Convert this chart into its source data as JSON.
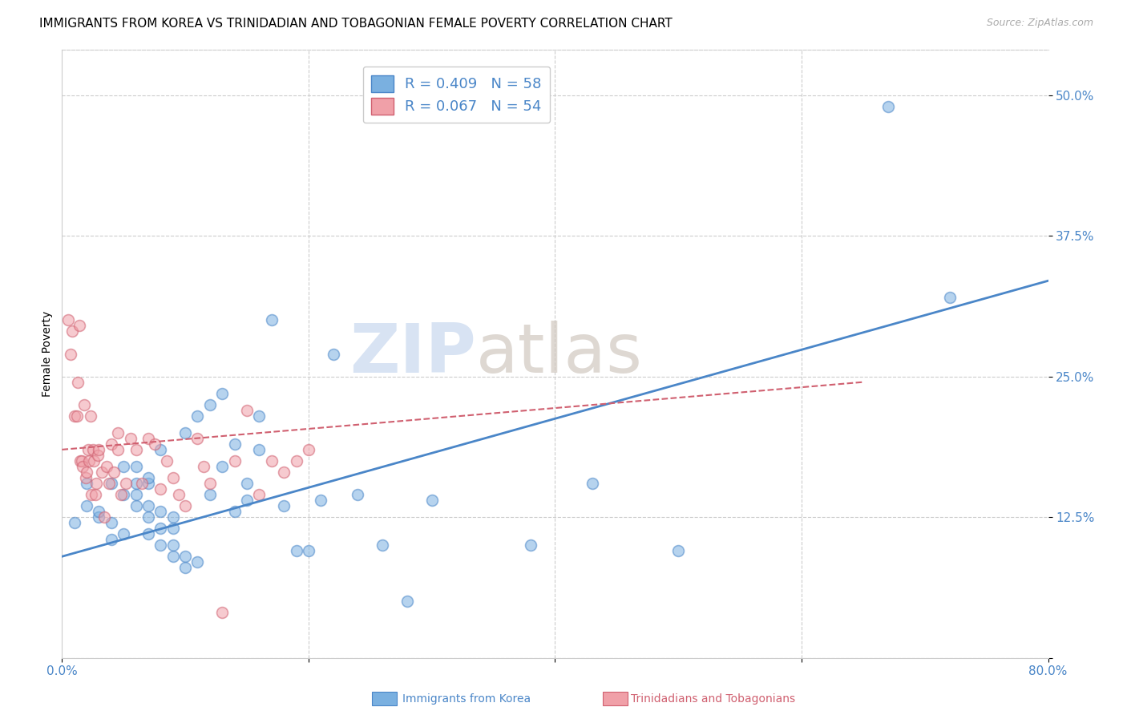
{
  "title": "IMMIGRANTS FROM KOREA VS TRINIDADIAN AND TOBAGONIAN FEMALE POVERTY CORRELATION CHART",
  "source": "Source: ZipAtlas.com",
  "ylabel": "Female Poverty",
  "yticks": [
    0.0,
    0.125,
    0.25,
    0.375,
    0.5
  ],
  "ytick_labels": [
    "",
    "12.5%",
    "25.0%",
    "37.5%",
    "50.0%"
  ],
  "xlim": [
    0.0,
    0.8
  ],
  "ylim": [
    0.0,
    0.54
  ],
  "watermark_left": "ZIP",
  "watermark_right": "atlas",
  "legend_r1": "R = 0.409",
  "legend_n1": "N = 58",
  "legend_r2": "R = 0.067",
  "legend_n2": "N = 54",
  "korea_scatter_x": [
    0.01,
    0.02,
    0.02,
    0.03,
    0.03,
    0.04,
    0.04,
    0.04,
    0.05,
    0.05,
    0.05,
    0.06,
    0.06,
    0.06,
    0.06,
    0.07,
    0.07,
    0.07,
    0.07,
    0.07,
    0.08,
    0.08,
    0.08,
    0.08,
    0.09,
    0.09,
    0.09,
    0.09,
    0.1,
    0.1,
    0.1,
    0.11,
    0.11,
    0.12,
    0.12,
    0.13,
    0.13,
    0.14,
    0.14,
    0.15,
    0.15,
    0.16,
    0.16,
    0.17,
    0.18,
    0.19,
    0.2,
    0.21,
    0.22,
    0.24,
    0.26,
    0.28,
    0.3,
    0.38,
    0.43,
    0.5,
    0.67,
    0.72
  ],
  "korea_scatter_y": [
    0.12,
    0.155,
    0.135,
    0.125,
    0.13,
    0.105,
    0.12,
    0.155,
    0.11,
    0.145,
    0.17,
    0.135,
    0.145,
    0.155,
    0.17,
    0.11,
    0.125,
    0.135,
    0.155,
    0.16,
    0.1,
    0.115,
    0.13,
    0.185,
    0.09,
    0.1,
    0.115,
    0.125,
    0.08,
    0.09,
    0.2,
    0.085,
    0.215,
    0.145,
    0.225,
    0.17,
    0.235,
    0.13,
    0.19,
    0.14,
    0.155,
    0.185,
    0.215,
    0.3,
    0.135,
    0.095,
    0.095,
    0.14,
    0.27,
    0.145,
    0.1,
    0.05,
    0.14,
    0.1,
    0.155,
    0.095,
    0.49,
    0.32
  ],
  "tt_scatter_x": [
    0.005,
    0.007,
    0.008,
    0.01,
    0.012,
    0.013,
    0.014,
    0.015,
    0.016,
    0.017,
    0.018,
    0.019,
    0.02,
    0.021,
    0.022,
    0.023,
    0.024,
    0.025,
    0.026,
    0.027,
    0.028,
    0.029,
    0.03,
    0.032,
    0.034,
    0.036,
    0.038,
    0.04,
    0.042,
    0.045,
    0.048,
    0.052,
    0.056,
    0.06,
    0.065,
    0.07,
    0.075,
    0.08,
    0.085,
    0.09,
    0.095,
    0.1,
    0.11,
    0.115,
    0.12,
    0.13,
    0.14,
    0.15,
    0.16,
    0.17,
    0.18,
    0.19,
    0.2,
    0.045
  ],
  "tt_scatter_y": [
    0.3,
    0.27,
    0.29,
    0.215,
    0.215,
    0.245,
    0.295,
    0.175,
    0.175,
    0.17,
    0.225,
    0.16,
    0.165,
    0.185,
    0.175,
    0.215,
    0.145,
    0.185,
    0.175,
    0.145,
    0.155,
    0.18,
    0.185,
    0.165,
    0.125,
    0.17,
    0.155,
    0.19,
    0.165,
    0.185,
    0.145,
    0.155,
    0.195,
    0.185,
    0.155,
    0.195,
    0.19,
    0.15,
    0.175,
    0.16,
    0.145,
    0.135,
    0.195,
    0.17,
    0.155,
    0.04,
    0.175,
    0.22,
    0.145,
    0.175,
    0.165,
    0.175,
    0.185,
    0.2
  ],
  "korea_line_x": [
    0.0,
    0.8
  ],
  "korea_line_y": [
    0.09,
    0.335
  ],
  "tt_line_x": [
    0.0,
    0.65
  ],
  "tt_line_y": [
    0.185,
    0.245
  ],
  "korea_color": "#7ab0e0",
  "tt_color": "#f0a0a8",
  "korea_line_color": "#4a86c8",
  "tt_line_color": "#d06070",
  "title_fontsize": 11,
  "source_fontsize": 9,
  "axis_label_fontsize": 10,
  "tick_fontsize": 11,
  "legend_fontsize": 13,
  "scatter_size": 100,
  "scatter_alpha": 0.55,
  "scatter_linewidth": 1.2,
  "bottom_legend_korea": "Immigrants from Korea",
  "bottom_legend_tt": "Trinidadians and Tobagonians"
}
